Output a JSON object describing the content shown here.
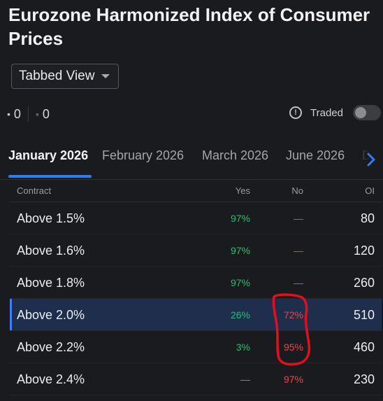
{
  "title": "Eurozone Harmonized Index of Consumer Prices",
  "view_select": {
    "label": "Tabbed View"
  },
  "counts": {
    "first": "0",
    "second": "0"
  },
  "traded": {
    "label": "Traded"
  },
  "tabs": [
    {
      "label": "January 2026",
      "active": true
    },
    {
      "label": "February 2026"
    },
    {
      "label": "March 2026"
    },
    {
      "label": "June 2026"
    },
    {
      "label": "De"
    }
  ],
  "table": {
    "headers": {
      "contract": "Contract",
      "yes": "Yes",
      "no": "No",
      "oi": "OI"
    },
    "rows": [
      {
        "contract": "Above 1.5%",
        "yes": "97%",
        "no": "—",
        "oi": "80"
      },
      {
        "contract": "Above 1.6%",
        "yes": "97%",
        "no": "—",
        "oi": "120"
      },
      {
        "contract": "Above 1.8%",
        "yes": "97%",
        "no": "—",
        "oi": "260"
      },
      {
        "contract": "Above 2.0%",
        "yes": "26%",
        "no": "72%",
        "oi": "510"
      },
      {
        "contract": "Above 2.2%",
        "yes": "3%",
        "no": "95%",
        "oi": "460"
      },
      {
        "contract": "Above 2.4%",
        "yes": "—",
        "no": "97%",
        "oi": "230"
      }
    ]
  },
  "colors": {
    "yes": "#23c16b",
    "no": "#e5484d",
    "accent": "#2f7cf6",
    "annotation": "#e0101c"
  },
  "icons": {
    "caret": "chevron-down-icon",
    "info": "info-icon",
    "tab_next": "chevron-right-icon"
  }
}
